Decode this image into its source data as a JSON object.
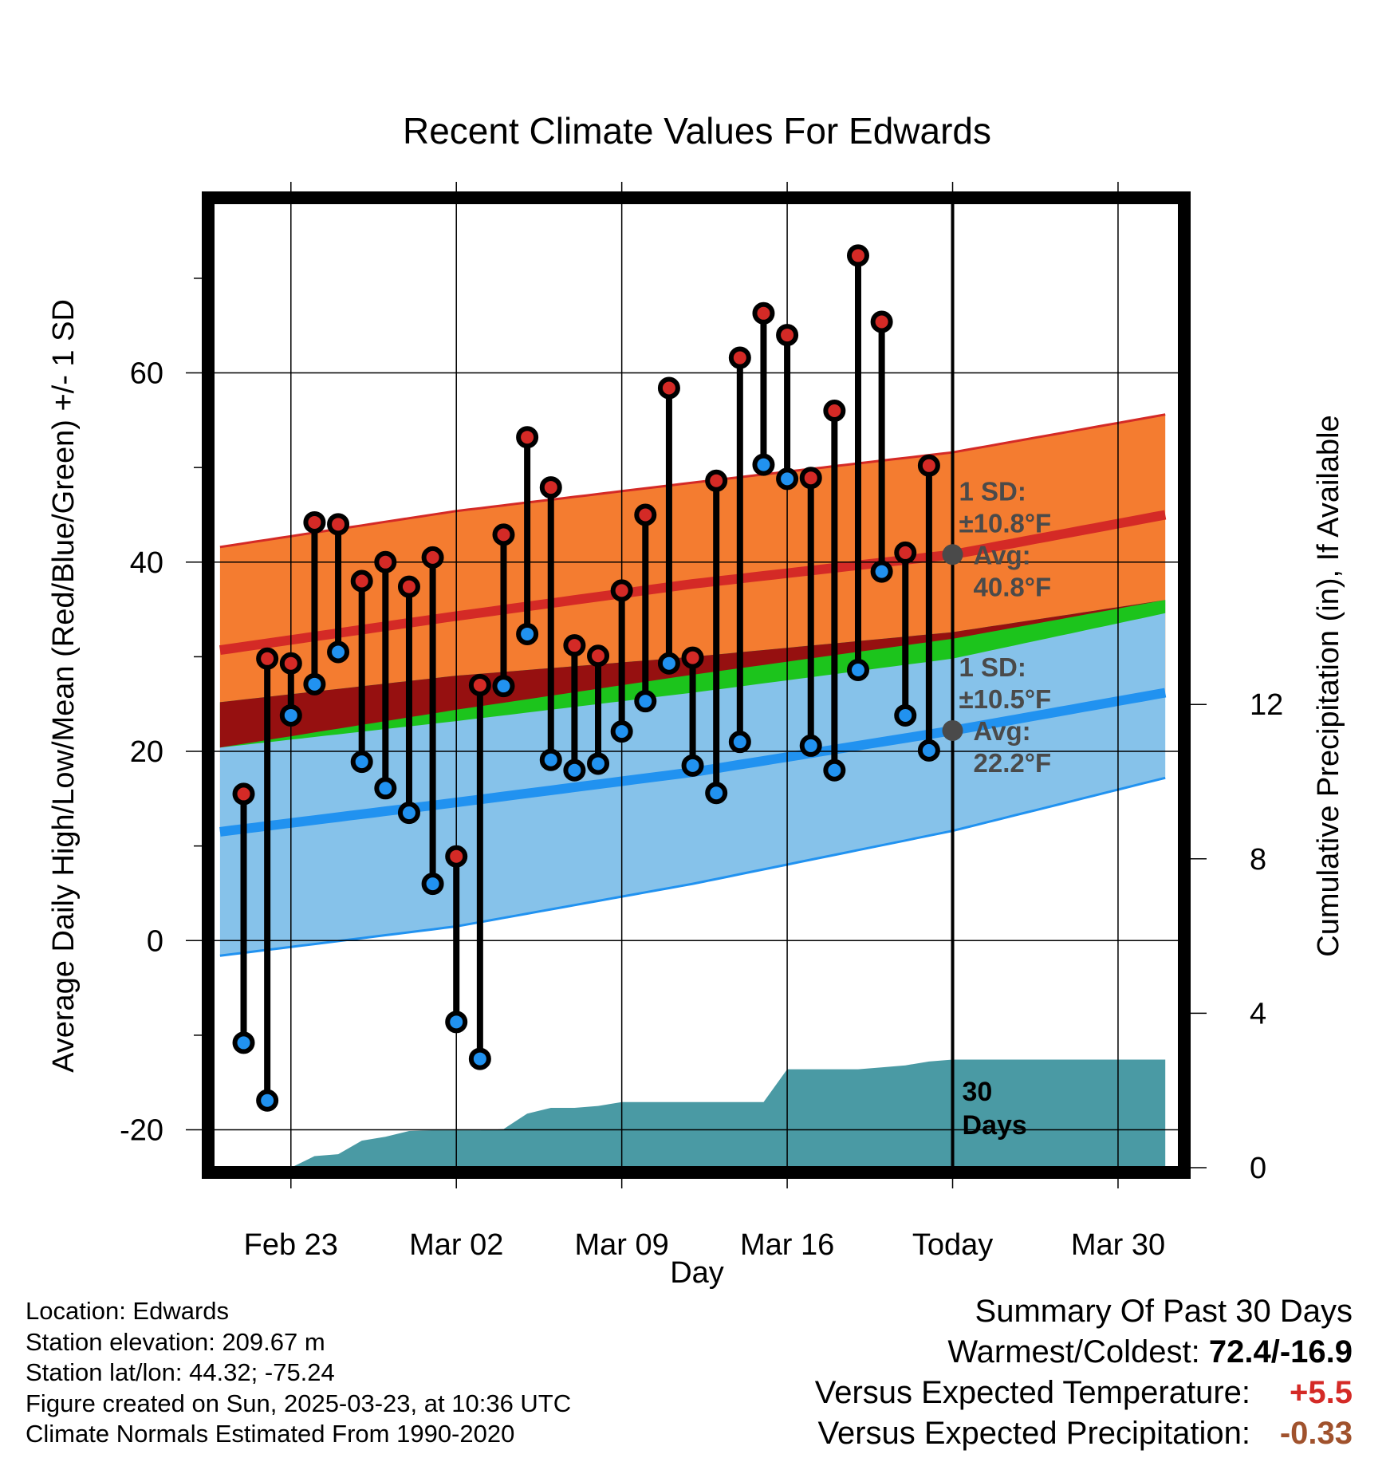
{
  "chart_data": {
    "type": "line",
    "title": "Recent Climate Values For Edwards",
    "xlabel": "Day",
    "ylabel": "Average Daily High/Low/Mean (Red/Blue/Green) +/- 1 SD",
    "y2label": "Cumulative Precipitation (in), If Available",
    "x_ticks": [
      "Feb 23",
      "Mar 02",
      "Mar 09",
      "Mar 16",
      "Today",
      "Mar 30"
    ],
    "x_tick_days": [
      3,
      10,
      17,
      24,
      31,
      38
    ],
    "x_range": [
      -0.3,
      40.6
    ],
    "ylim": [
      -24,
      78
    ],
    "y_ticks": [
      "60",
      "40",
      "20",
      "0",
      "-20"
    ],
    "y_tick_values": [
      60,
      40,
      20,
      0,
      -20
    ],
    "y2lim": [
      0,
      25
    ],
    "y2_ticks": [
      "12",
      "8",
      "4",
      "0"
    ],
    "y2_tick_values": [
      12,
      8,
      4,
      0
    ],
    "grid": true,
    "today_day": 31,
    "window_label": [
      "30",
      "Days"
    ],
    "normals": {
      "x": [
        0,
        10,
        20,
        31,
        40
      ],
      "high_avg": [
        30.7,
        34.3,
        37.7,
        40.8,
        45.0
      ],
      "high_upper": [
        41.6,
        45.4,
        48.4,
        51.6,
        55.6
      ],
      "low_avg": [
        11.5,
        14.6,
        17.8,
        22.2,
        26.2
      ],
      "low_lower": [
        -1.6,
        1.5,
        6.0,
        11.6,
        17.2
      ],
      "mean_top": [
        25.2,
        28.0,
        30.0,
        32.6,
        36.0
      ],
      "mean_bottom": [
        20.4,
        23.2,
        26.2,
        29.8,
        34.6
      ]
    },
    "annotations": {
      "high_sd_label": "1 SD:",
      "high_sd_value": "±10.8°F",
      "high_avg_label": "Avg:",
      "high_avg_value": "40.8°F",
      "low_sd_label": "1 SD:",
      "low_sd_value": "±10.5°F",
      "low_avg_label": "Avg:",
      "low_avg_value": "22.2°F"
    },
    "series": [
      {
        "name": "High",
        "color": "#d42a26",
        "x": [
          1,
          2,
          3,
          4,
          5,
          6,
          7,
          8,
          9,
          10,
          11,
          12,
          13,
          14,
          15,
          16,
          17,
          18,
          19,
          20,
          21,
          22,
          23,
          24,
          25,
          26,
          27,
          28,
          29,
          30
        ],
        "values": [
          15.5,
          29.8,
          29.3,
          44.2,
          44.0,
          38.0,
          40.0,
          37.4,
          40.5,
          8.9,
          27.0,
          42.9,
          53.2,
          47.9,
          31.2,
          30.1,
          37.0,
          45.0,
          58.4,
          29.9,
          48.6,
          61.6,
          66.3,
          64.0,
          48.9,
          56.0,
          72.4,
          65.4,
          41.0,
          50.2
        ]
      },
      {
        "name": "Low",
        "color": "#2192f0",
        "x": [
          1,
          2,
          3,
          4,
          5,
          6,
          7,
          8,
          9,
          10,
          11,
          12,
          13,
          14,
          15,
          16,
          17,
          18,
          19,
          20,
          21,
          22,
          23,
          24,
          25,
          26,
          27,
          28,
          29,
          30
        ],
        "values": [
          -10.8,
          -16.9,
          23.8,
          27.1,
          30.5,
          18.9,
          16.1,
          13.5,
          6.0,
          -8.6,
          -12.5,
          26.9,
          32.4,
          19.1,
          18.0,
          18.7,
          22.1,
          25.3,
          29.3,
          18.5,
          15.6,
          21.0,
          50.3,
          48.8,
          20.6,
          18.0,
          28.6,
          39.0,
          23.8,
          20.1
        ]
      }
    ],
    "precip": {
      "x": [
        0,
        3,
        4,
        5,
        6,
        7,
        8,
        9,
        10,
        11,
        12,
        13,
        14,
        15,
        16,
        17,
        18,
        19,
        20,
        21,
        22,
        23,
        24,
        25,
        26,
        27,
        28,
        29,
        30,
        31,
        40
      ],
      "values": [
        0,
        0,
        0.3,
        0.35,
        0.7,
        0.8,
        0.95,
        0.97,
        0.97,
        0.97,
        1.0,
        1.4,
        1.55,
        1.55,
        1.6,
        1.7,
        1.7,
        1.7,
        1.7,
        1.7,
        1.7,
        1.7,
        2.55,
        2.55,
        2.55,
        2.55,
        2.6,
        2.65,
        2.75,
        2.8,
        2.8
      ]
    },
    "colors": {
      "high_band": "#f47c30",
      "high_line": "#d42a26",
      "low_band": "#86c2ea",
      "low_line": "#2192f0",
      "mean_band": "#1cc41c",
      "mean_overlap": "#961010",
      "precip_fill": "#4a9aa4",
      "annotation_text": "#4a4a4a"
    }
  },
  "info": {
    "location": "Location: Edwards",
    "elevation": "Station elevation: 209.67 m",
    "latlon": "Station lat/lon: 44.32; -75.24",
    "created": "Figure created on Sun, 2025-03-23, at 10:36 UTC",
    "normals": "Climate Normals Estimated From 1990-2020"
  },
  "summary": {
    "title": "Summary Of Past 30 Days",
    "warm_label": "Warmest/Coldest: ",
    "warm_value": "72.4/-16.9",
    "temp_label": "Versus Expected Temperature:",
    "temp_value": "+5.5",
    "temp_color": "#d42a26",
    "precip_label": "Versus Expected Precipitation:",
    "precip_value": "-0.33",
    "precip_color": "#a0522d"
  }
}
